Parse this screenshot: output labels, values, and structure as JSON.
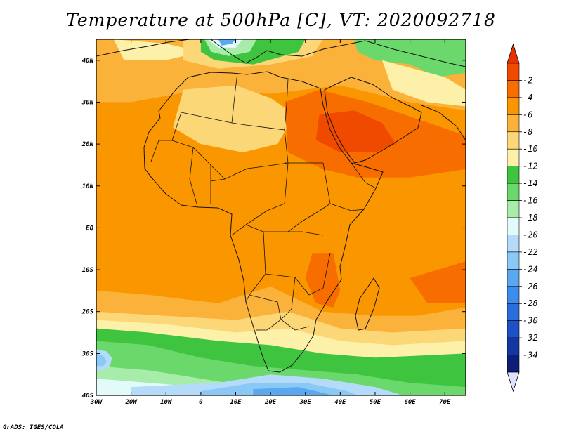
{
  "title": "Temperature at 500hPa [C], VT: 2020092718",
  "credit": "GrADS: IGES/COLA",
  "map": {
    "lon_range": [
      -30,
      76
    ],
    "lat_range": [
      -40,
      45
    ],
    "lon_ticks": [
      {
        "value": -30,
        "label": "30W"
      },
      {
        "value": -20,
        "label": "20W"
      },
      {
        "value": -10,
        "label": "10W"
      },
      {
        "value": 0,
        "label": "0"
      },
      {
        "value": 10,
        "label": "10E"
      },
      {
        "value": 20,
        "label": "20E"
      },
      {
        "value": 30,
        "label": "30E"
      },
      {
        "value": 40,
        "label": "40E"
      },
      {
        "value": 50,
        "label": "50E"
      },
      {
        "value": 60,
        "label": "60E"
      },
      {
        "value": 70,
        "label": "70E"
      }
    ],
    "lat_ticks": [
      {
        "value": 40,
        "label": "40N"
      },
      {
        "value": 30,
        "label": "30N"
      },
      {
        "value": 20,
        "label": "20N"
      },
      {
        "value": 10,
        "label": "10N"
      },
      {
        "value": 0,
        "label": "EQ"
      },
      {
        "value": -10,
        "label": "10S"
      },
      {
        "value": -20,
        "label": "20S"
      },
      {
        "value": -30,
        "label": "30S"
      },
      {
        "value": -40,
        "label": "40S"
      }
    ]
  },
  "colorbar": {
    "top_color": "#e83000",
    "bottom_color": "#e0e0ff",
    "bands": [
      {
        "color": "#f04a00"
      },
      {
        "color": "#f76d00"
      },
      {
        "color": "#fa9600"
      },
      {
        "color": "#fbb23a"
      },
      {
        "color": "#fcd778"
      },
      {
        "color": "#fdf0a8"
      },
      {
        "color": "#3fc43f"
      },
      {
        "color": "#6ad86a"
      },
      {
        "color": "#a8ecab"
      },
      {
        "color": "#e2fafa"
      },
      {
        "color": "#b4dcfa"
      },
      {
        "color": "#8ac8f5"
      },
      {
        "color": "#5aa8f0"
      },
      {
        "color": "#3c8cec"
      },
      {
        "color": "#2a6edc"
      },
      {
        "color": "#1e50c8"
      },
      {
        "color": "#1436a0"
      },
      {
        "color": "#0c1e78"
      }
    ],
    "labels": [
      "-2",
      "-4",
      "-6",
      "-8",
      "-10",
      "-12",
      "-14",
      "-16",
      "-18",
      "-20",
      "-22",
      "-24",
      "-26",
      "-28",
      "-30",
      "-32",
      "-34"
    ]
  },
  "fields": {
    "base_color": "#fa9600",
    "regions": [
      {
        "name": "northern-band",
        "color": "#fbb23a",
        "points": [
          [
            -30,
            45
          ],
          [
            76,
            45
          ],
          [
            76,
            28
          ],
          [
            60,
            30
          ],
          [
            40,
            34
          ],
          [
            20,
            32
          ],
          [
            0,
            33
          ],
          [
            -20,
            30
          ],
          [
            -30,
            30
          ]
        ]
      },
      {
        "name": "sahara-light",
        "color": "#fcd778",
        "points": [
          [
            -5,
            33
          ],
          [
            10,
            34
          ],
          [
            20,
            31
          ],
          [
            27,
            27
          ],
          [
            22,
            20
          ],
          [
            12,
            18
          ],
          [
            0,
            20
          ],
          [
            -8,
            24
          ]
        ]
      },
      {
        "name": "north-pale",
        "color": "#fdf0a8",
        "points": [
          [
            -25,
            45
          ],
          [
            -10,
            44
          ],
          [
            0,
            42
          ],
          [
            -10,
            40
          ],
          [
            -22,
            40
          ]
        ]
      },
      {
        "name": "arabia-warm",
        "color": "#f76d00",
        "points": [
          [
            24,
            30
          ],
          [
            34,
            33
          ],
          [
            48,
            30
          ],
          [
            62,
            26
          ],
          [
            76,
            22
          ],
          [
            76,
            14
          ],
          [
            60,
            12
          ],
          [
            45,
            12
          ],
          [
            35,
            14
          ],
          [
            25,
            18
          ]
        ]
      },
      {
        "name": "arabia-hot",
        "color": "#f04a00",
        "points": [
          [
            34,
            27
          ],
          [
            44,
            28
          ],
          [
            52,
            25
          ],
          [
            56,
            20
          ],
          [
            50,
            18
          ],
          [
            40,
            18
          ],
          [
            33,
            21
          ]
        ]
      },
      {
        "name": "east-africa-warm",
        "color": "#f76d00",
        "points": [
          [
            32,
            -6
          ],
          [
            38,
            -6
          ],
          [
            40,
            -15
          ],
          [
            38,
            -19
          ],
          [
            33,
            -18
          ],
          [
            30,
            -12
          ]
        ]
      },
      {
        "name": "indian-ocean-warm",
        "color": "#f76d00",
        "points": [
          [
            60,
            -12
          ],
          [
            76,
            -8
          ],
          [
            76,
            -18
          ],
          [
            65,
            -18
          ]
        ]
      },
      {
        "name": "southern-yellow-1",
        "color": "#fbb23a",
        "points": [
          [
            -30,
            -15
          ],
          [
            -15,
            -16
          ],
          [
            5,
            -18
          ],
          [
            20,
            -14
          ],
          [
            35,
            -20
          ],
          [
            50,
            -21
          ],
          [
            62,
            -21
          ],
          [
            76,
            -19
          ],
          [
            76,
            -40
          ],
          [
            -30,
            -40
          ]
        ]
      },
      {
        "name": "southern-yellow-2",
        "color": "#fcd778",
        "points": [
          [
            -30,
            -20
          ],
          [
            -10,
            -21
          ],
          [
            10,
            -22
          ],
          [
            25,
            -20
          ],
          [
            40,
            -24
          ],
          [
            55,
            -25
          ],
          [
            76,
            -24
          ],
          [
            76,
            -40
          ],
          [
            -30,
            -40
          ]
        ]
      },
      {
        "name": "southern-pale",
        "color": "#fdf0a8",
        "points": [
          [
            -30,
            -22
          ],
          [
            -10,
            -23
          ],
          [
            10,
            -25
          ],
          [
            25,
            -24
          ],
          [
            40,
            -27
          ],
          [
            55,
            -28
          ],
          [
            76,
            -27
          ],
          [
            76,
            -40
          ],
          [
            -30,
            -40
          ]
        ]
      },
      {
        "name": "southern-green-dark",
        "color": "#3fc43f",
        "points": [
          [
            -30,
            -24
          ],
          [
            -15,
            -25
          ],
          [
            5,
            -27
          ],
          [
            20,
            -28
          ],
          [
            35,
            -30
          ],
          [
            50,
            -31
          ],
          [
            76,
            -30
          ],
          [
            76,
            -40
          ],
          [
            -30,
            -40
          ]
        ]
      },
      {
        "name": "southern-green-mid",
        "color": "#6ad86a",
        "points": [
          [
            -30,
            -27
          ],
          [
            -15,
            -28
          ],
          [
            0,
            -31
          ],
          [
            15,
            -33
          ],
          [
            30,
            -34
          ],
          [
            45,
            -35
          ],
          [
            60,
            -37
          ],
          [
            76,
            -38
          ],
          [
            76,
            -40
          ],
          [
            -30,
            -40
          ]
        ]
      },
      {
        "name": "southern-green-light",
        "color": "#a8ecab",
        "points": [
          [
            -30,
            -33
          ],
          [
            -15,
            -34
          ],
          [
            0,
            -36
          ],
          [
            15,
            -38
          ],
          [
            30,
            -39
          ],
          [
            45,
            -40
          ],
          [
            -30,
            -40
          ]
        ]
      },
      {
        "name": "southern-cyan",
        "color": "#e2fafa",
        "points": [
          [
            -30,
            -36
          ],
          [
            -15,
            -37
          ],
          [
            0,
            -38
          ],
          [
            12,
            -40
          ],
          [
            -30,
            -40
          ]
        ]
      },
      {
        "name": "southern-blue-light",
        "color": "#b4dcfa",
        "points": [
          [
            -20,
            -38
          ],
          [
            5,
            -37
          ],
          [
            20,
            -35
          ],
          [
            35,
            -36
          ],
          [
            50,
            -38
          ],
          [
            58,
            -40
          ],
          [
            -20,
            -40
          ]
        ]
      },
      {
        "name": "southern-blue",
        "color": "#8ac8f5",
        "points": [
          [
            0,
            -39
          ],
          [
            15,
            -37
          ],
          [
            30,
            -37
          ],
          [
            42,
            -39
          ],
          [
            45,
            -40
          ],
          [
            0,
            -40
          ]
        ]
      },
      {
        "name": "southern-blue-dark",
        "color": "#5aa8f0",
        "points": [
          [
            15,
            -38.5
          ],
          [
            28,
            -38
          ],
          [
            38,
            -40
          ],
          [
            15,
            -40
          ]
        ]
      },
      {
        "name": "west-vortex-ring",
        "color": "#b4dcfa",
        "points": [
          [
            -30,
            -29
          ],
          [
            -27,
            -29.5
          ],
          [
            -25.5,
            -31
          ],
          [
            -26,
            -33
          ],
          [
            -28,
            -34
          ],
          [
            -30,
            -34
          ]
        ]
      },
      {
        "name": "west-vortex",
        "color": "#8ac8f5",
        "points": [
          [
            -30,
            -30
          ],
          [
            -28,
            -30.5
          ],
          [
            -27,
            -32
          ],
          [
            -28,
            -33
          ],
          [
            -30,
            -33
          ]
        ]
      },
      {
        "name": "med-yellow",
        "color": "#fcd778",
        "points": [
          [
            -5,
            45
          ],
          [
            35,
            45
          ],
          [
            32,
            41
          ],
          [
            20,
            39
          ],
          [
            5,
            38
          ],
          [
            -5,
            40
          ]
        ]
      },
      {
        "name": "med-green",
        "color": "#3fc43f",
        "points": [
          [
            0,
            45
          ],
          [
            30,
            45
          ],
          [
            28,
            42
          ],
          [
            15,
            39
          ],
          [
            4,
            40
          ],
          [
            0,
            42
          ]
        ]
      },
      {
        "name": "med-green-light",
        "color": "#a8ecab",
        "points": [
          [
            1,
            45
          ],
          [
            16,
            45
          ],
          [
            14,
            42
          ],
          [
            8,
            41
          ],
          [
            3,
            42
          ]
        ]
      },
      {
        "name": "med-cyan",
        "color": "#e2fafa",
        "points": [
          [
            2,
            45
          ],
          [
            12,
            45
          ],
          [
            10,
            43
          ],
          [
            5,
            43
          ]
        ]
      },
      {
        "name": "med-blue",
        "color": "#5aa8f0",
        "points": [
          [
            5,
            45
          ],
          [
            10,
            45
          ],
          [
            9,
            44
          ],
          [
            6,
            43.5
          ]
        ]
      },
      {
        "name": "ne-green",
        "color": "#6ad86a",
        "points": [
          [
            44,
            45
          ],
          [
            76,
            45
          ],
          [
            76,
            37
          ],
          [
            68,
            36
          ],
          [
            60,
            39
          ],
          [
            50,
            40
          ],
          [
            45,
            42
          ]
        ]
      },
      {
        "name": "ne-yellow",
        "color": "#fdf0a8",
        "points": [
          [
            52,
            40
          ],
          [
            70,
            36
          ],
          [
            76,
            33
          ],
          [
            76,
            29
          ],
          [
            65,
            30
          ],
          [
            55,
            33
          ]
        ]
      }
    ]
  }
}
